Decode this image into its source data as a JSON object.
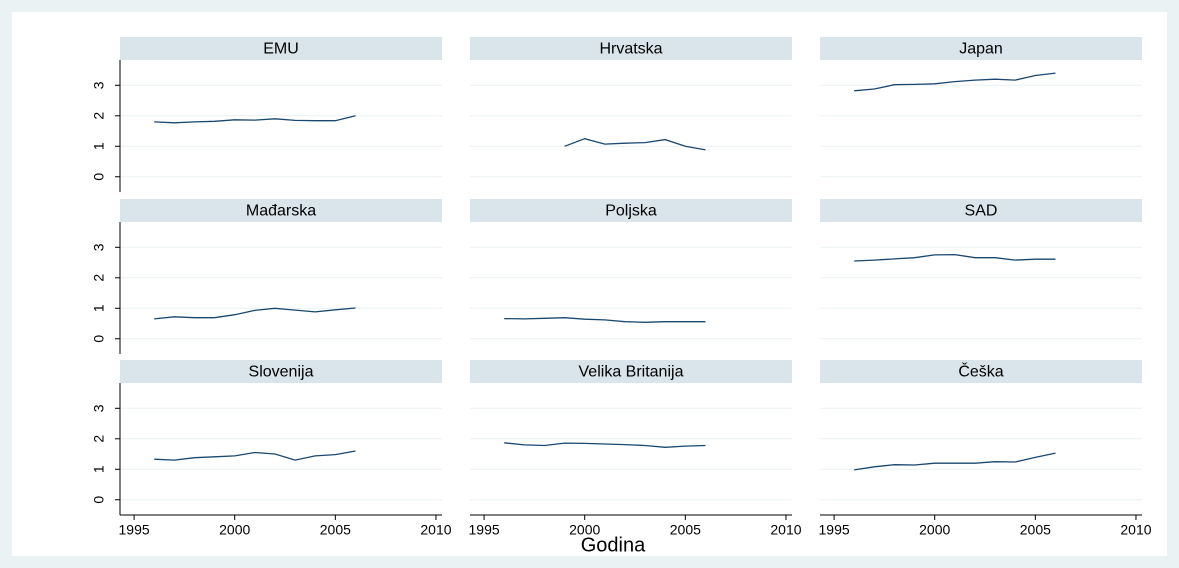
{
  "xlabel": "Godina",
  "chart_data": [
    {
      "type": "line",
      "title": "EMU",
      "x": [
        1996,
        1997,
        1998,
        1999,
        2000,
        2001,
        2002,
        2003,
        2004,
        2005,
        2006
      ],
      "values": [
        1.8,
        1.77,
        1.8,
        1.82,
        1.87,
        1.86,
        1.9,
        1.85,
        1.84,
        1.84,
        2.0
      ],
      "color": "#1a476f",
      "xlim": [
        1994.3,
        2010.3
      ],
      "ylim": [
        -0.5,
        3.83
      ],
      "yticks": [
        0,
        1,
        2,
        3
      ],
      "grid": true
    },
    {
      "type": "line",
      "title": "Hrvatska",
      "x": [
        1999,
        2000,
        2001,
        2002,
        2003,
        2004,
        2005,
        2006
      ],
      "values": [
        1.0,
        1.25,
        1.07,
        1.1,
        1.12,
        1.22,
        1.0,
        0.88
      ],
      "color": "#1a476f",
      "xlim": [
        1994.3,
        2010.3
      ],
      "ylim": [
        -0.5,
        3.83
      ],
      "yticks": [
        0,
        1,
        2,
        3
      ],
      "grid": true
    },
    {
      "type": "line",
      "title": "Japan",
      "x": [
        1996,
        1997,
        1998,
        1999,
        2000,
        2001,
        2002,
        2003,
        2004,
        2005,
        2006
      ],
      "values": [
        2.82,
        2.88,
        3.02,
        3.03,
        3.05,
        3.12,
        3.17,
        3.2,
        3.17,
        3.32,
        3.4
      ],
      "color": "#1a476f",
      "xlim": [
        1994.3,
        2010.3
      ],
      "ylim": [
        -0.5,
        3.83
      ],
      "yticks": [
        0,
        1,
        2,
        3
      ],
      "grid": true
    },
    {
      "type": "line",
      "title": "Mađarska",
      "x": [
        1996,
        1997,
        1998,
        1999,
        2000,
        2001,
        2002,
        2003,
        2004,
        2005,
        2006
      ],
      "values": [
        0.65,
        0.72,
        0.69,
        0.69,
        0.79,
        0.93,
        1.0,
        0.94,
        0.88,
        0.95,
        1.01
      ],
      "color": "#1a476f",
      "xlim": [
        1994.3,
        2010.3
      ],
      "ylim": [
        -0.5,
        3.83
      ],
      "yticks": [
        0,
        1,
        2,
        3
      ],
      "grid": true
    },
    {
      "type": "line",
      "title": "Poljska",
      "x": [
        1996,
        1997,
        1998,
        1999,
        2000,
        2001,
        2002,
        2003,
        2004,
        2005,
        2006
      ],
      "values": [
        0.66,
        0.65,
        0.67,
        0.69,
        0.64,
        0.62,
        0.56,
        0.54,
        0.56,
        0.56,
        0.56
      ],
      "color": "#1a476f",
      "xlim": [
        1994.3,
        2010.3
      ],
      "ylim": [
        -0.5,
        3.83
      ],
      "yticks": [
        0,
        1,
        2,
        3
      ],
      "grid": true
    },
    {
      "type": "line",
      "title": "SAD",
      "x": [
        1996,
        1997,
        1998,
        1999,
        2000,
        2001,
        2002,
        2003,
        2004,
        2005,
        2006
      ],
      "values": [
        2.55,
        2.58,
        2.62,
        2.66,
        2.75,
        2.76,
        2.66,
        2.66,
        2.58,
        2.61,
        2.61
      ],
      "color": "#1a476f",
      "xlim": [
        1994.3,
        2010.3
      ],
      "ylim": [
        -0.5,
        3.83
      ],
      "yticks": [
        0,
        1,
        2,
        3
      ],
      "grid": true
    },
    {
      "type": "line",
      "title": "Slovenija",
      "x": [
        1996,
        1997,
        1998,
        1999,
        2000,
        2001,
        2002,
        2003,
        2004,
        2005,
        2006
      ],
      "values": [
        1.33,
        1.3,
        1.38,
        1.41,
        1.44,
        1.55,
        1.5,
        1.3,
        1.44,
        1.48,
        1.6
      ],
      "color": "#1a476f",
      "xlim": [
        1994.3,
        2010.3
      ],
      "ylim": [
        -0.5,
        3.83
      ],
      "yticks": [
        0,
        1,
        2,
        3
      ],
      "xticks": [
        1995,
        2000,
        2005,
        2010
      ],
      "grid": true
    },
    {
      "type": "line",
      "title": "Velika Britanija",
      "x": [
        1996,
        1997,
        1998,
        1999,
        2000,
        2001,
        2002,
        2003,
        2004,
        2005,
        2006
      ],
      "values": [
        1.87,
        1.8,
        1.78,
        1.86,
        1.85,
        1.83,
        1.81,
        1.78,
        1.72,
        1.76,
        1.78
      ],
      "color": "#1a476f",
      "xlim": [
        1994.3,
        2010.3
      ],
      "ylim": [
        -0.5,
        3.83
      ],
      "yticks": [
        0,
        1,
        2,
        3
      ],
      "xticks": [
        1995,
        2000,
        2005,
        2010
      ],
      "grid": true
    },
    {
      "type": "line",
      "title": "Češka",
      "x": [
        1996,
        1997,
        1998,
        1999,
        2000,
        2001,
        2002,
        2003,
        2004,
        2005,
        2006
      ],
      "values": [
        0.98,
        1.08,
        1.15,
        1.14,
        1.2,
        1.2,
        1.2,
        1.25,
        1.24,
        1.39,
        1.53
      ],
      "color": "#1a476f",
      "xlim": [
        1994.3,
        2010.3
      ],
      "ylim": [
        -0.5,
        3.83
      ],
      "yticks": [
        0,
        1,
        2,
        3
      ],
      "xticks": [
        1995,
        2000,
        2005,
        2010
      ],
      "grid": true
    }
  ]
}
